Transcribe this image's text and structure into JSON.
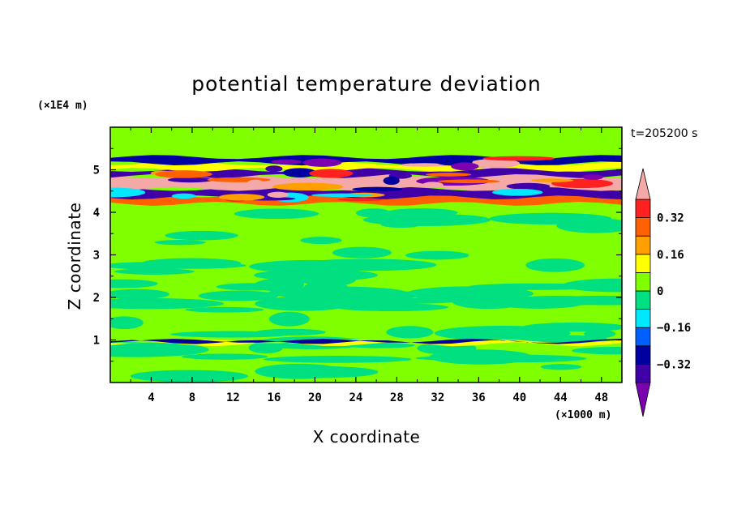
{
  "chart_data": {
    "type": "heatmap",
    "title": "potential temperature deviation",
    "xlabel": "X coordinate",
    "ylabel": "Z coordinate",
    "x_unit": "(×1000 m)",
    "y_unit": "(×1E4 m)",
    "time_label": "t=205200 s",
    "xlim": [
      0,
      50
    ],
    "ylim": [
      0,
      6
    ],
    "x_ticks": [
      4,
      8,
      12,
      16,
      20,
      24,
      28,
      32,
      36,
      40,
      44,
      48
    ],
    "x_tick_labels": [
      "4",
      "8",
      "12",
      "16",
      "20",
      "24",
      "28",
      "32",
      "36",
      "40",
      "44",
      "48"
    ],
    "y_ticks": [
      1,
      2,
      3,
      4,
      5
    ],
    "y_tick_labels": [
      "1",
      "2",
      "3",
      "4",
      "5"
    ],
    "colorbar": {
      "levels": [
        -0.4,
        -0.32,
        -0.24,
        -0.16,
        -0.08,
        0,
        0.08,
        0.16,
        0.24,
        0.32,
        0.4
      ],
      "label_values": [
        "0.32",
        "0.16",
        "0",
        "−0.16",
        "−0.32"
      ],
      "colors": [
        "#7a00b0",
        "#4000a8",
        "#0000a0",
        "#0060ff",
        "#00e8ff",
        "#00e080",
        "#80ff00",
        "#ffff00",
        "#ffa000",
        "#ff6000",
        "#ff2020",
        "#f4a8a8"
      ],
      "extend": "both"
    },
    "bands": [
      {
        "z_low": 0,
        "z_high": 0.9,
        "color": "#80ff00"
      },
      {
        "z_low": 0.9,
        "z_high": 0.97,
        "color": "#ffff00"
      },
      {
        "z_low": 0.95,
        "z_high": 0.98,
        "color": "#0000a0"
      },
      {
        "z_low": 1.0,
        "z_high": 4.2,
        "color": "#80ff00"
      },
      {
        "z_low": 4.2,
        "z_high": 4.4,
        "color": "#ff6000"
      },
      {
        "z_low": 4.35,
        "z_high": 4.55,
        "color": "#4000a8"
      },
      {
        "z_low": 4.55,
        "z_high": 4.85,
        "color": "#f4a8a8"
      },
      {
        "z_low": 4.85,
        "z_high": 5.0,
        "color": "#4000a8"
      },
      {
        "z_low": 5.0,
        "z_high": 5.15,
        "color": "#ffff00"
      },
      {
        "z_low": 5.15,
        "z_high": 5.3,
        "color": "#0000a0"
      },
      {
        "z_low": 5.3,
        "z_high": 6.0,
        "color": "#80ff00"
      }
    ],
    "grid": false
  }
}
